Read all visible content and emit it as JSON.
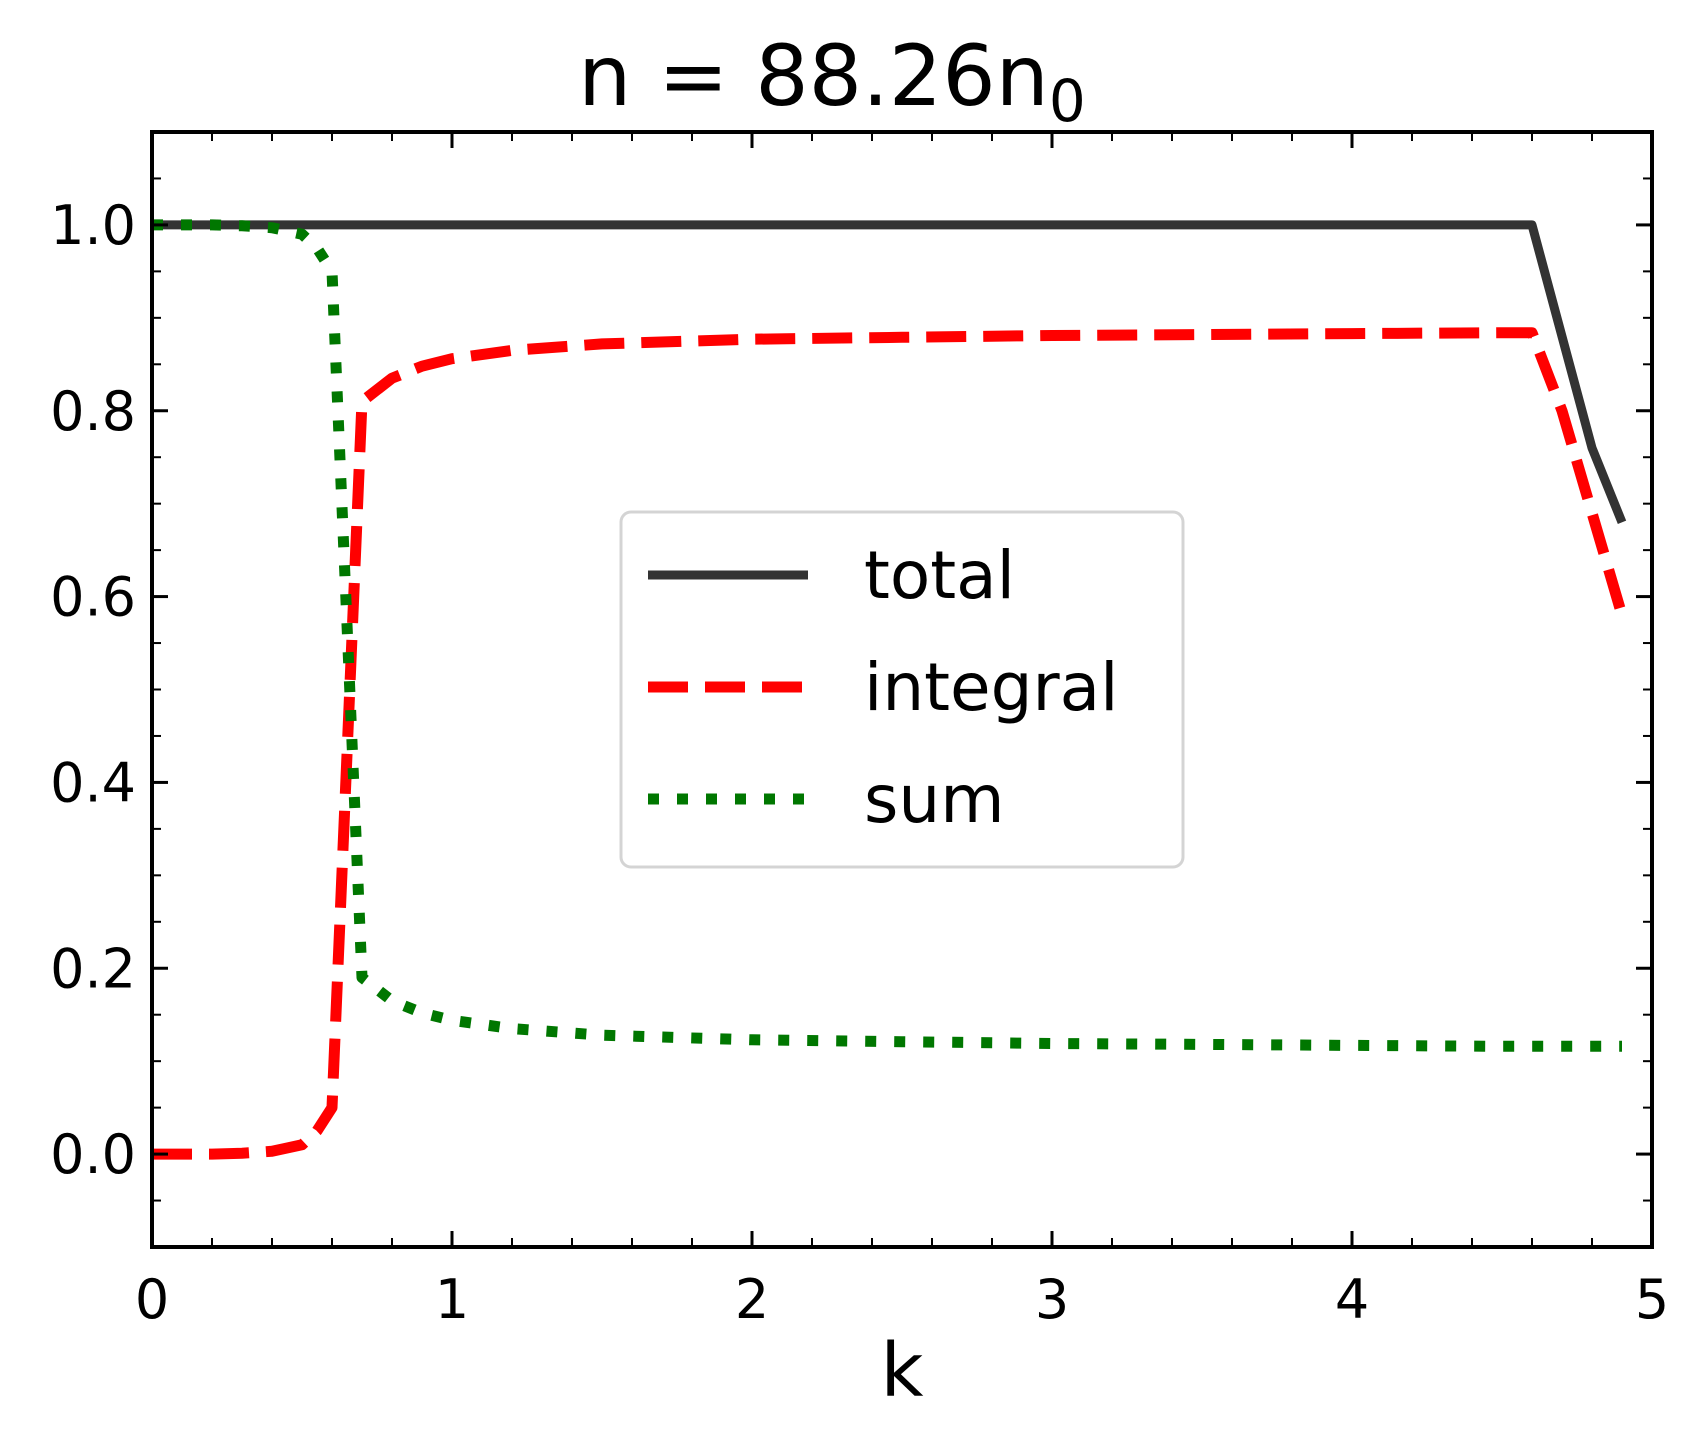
{
  "chart_data": {
    "type": "line",
    "title": {
      "main": "n = 88.26n",
      "subscript": "0"
    },
    "xlabel": "k",
    "ylabel": "",
    "xlim": [
      0,
      5
    ],
    "ylim": [
      -0.1,
      1.1
    ],
    "xticks": [
      0,
      1,
      2,
      3,
      4,
      5
    ],
    "xtick_labels": [
      "0",
      "1",
      "2",
      "3",
      "4",
      "5"
    ],
    "xminor_step": 0.2,
    "yticks": [
      0.0,
      0.2,
      0.4,
      0.6,
      0.8,
      1.0
    ],
    "ytick_labels": [
      "0.0",
      "0.2",
      "0.4",
      "0.6",
      "0.8",
      "1.0"
    ],
    "yminor_step": 0.05,
    "grid": false,
    "legend_position": "center",
    "series": [
      {
        "name": "total",
        "color": "#333333",
        "style": "solid",
        "x": [
          0,
          0.1,
          0.2,
          0.3,
          0.4,
          0.5,
          0.6,
          0.7,
          0.8,
          1.0,
          1.5,
          2.0,
          2.5,
          3.0,
          3.5,
          4.0,
          4.5,
          4.6,
          4.7,
          4.8,
          4.9
        ],
        "y": [
          1.0,
          1.0,
          1.0,
          1.0,
          1.0,
          1.0,
          1.0,
          1.0,
          1.0,
          1.0,
          1.0,
          1.0,
          1.0,
          1.0,
          1.0,
          1.0,
          1.0,
          1.0,
          0.88,
          0.76,
          0.68
        ]
      },
      {
        "name": "integral",
        "color": "#ff0000",
        "style": "dashed",
        "x": [
          0,
          0.1,
          0.2,
          0.3,
          0.4,
          0.5,
          0.55,
          0.6,
          0.65,
          0.7,
          0.8,
          0.9,
          1.0,
          1.2,
          1.5,
          2.0,
          2.5,
          3.0,
          3.5,
          4.0,
          4.5,
          4.6,
          4.7,
          4.8,
          4.9
        ],
        "y": [
          0.0,
          0.0,
          0.0,
          0.001,
          0.003,
          0.01,
          0.025,
          0.05,
          0.43,
          0.81,
          0.835,
          0.848,
          0.856,
          0.865,
          0.872,
          0.877,
          0.879,
          0.881,
          0.882,
          0.883,
          0.884,
          0.884,
          0.8,
          0.69,
          0.58
        ]
      },
      {
        "name": "sum",
        "color": "#007700",
        "style": "dotted",
        "x": [
          0,
          0.1,
          0.2,
          0.3,
          0.4,
          0.5,
          0.55,
          0.6,
          0.65,
          0.7,
          0.8,
          0.9,
          1.0,
          1.2,
          1.5,
          2.0,
          2.5,
          3.0,
          3.5,
          4.0,
          4.5,
          4.6,
          4.7,
          4.8,
          4.9
        ],
        "y": [
          1.0,
          1.0,
          1.0,
          0.999,
          0.997,
          0.99,
          0.975,
          0.95,
          0.57,
          0.19,
          0.165,
          0.152,
          0.144,
          0.135,
          0.128,
          0.123,
          0.121,
          0.119,
          0.118,
          0.117,
          0.116,
          0.116,
          0.116,
          0.116,
          0.116
        ]
      }
    ]
  }
}
